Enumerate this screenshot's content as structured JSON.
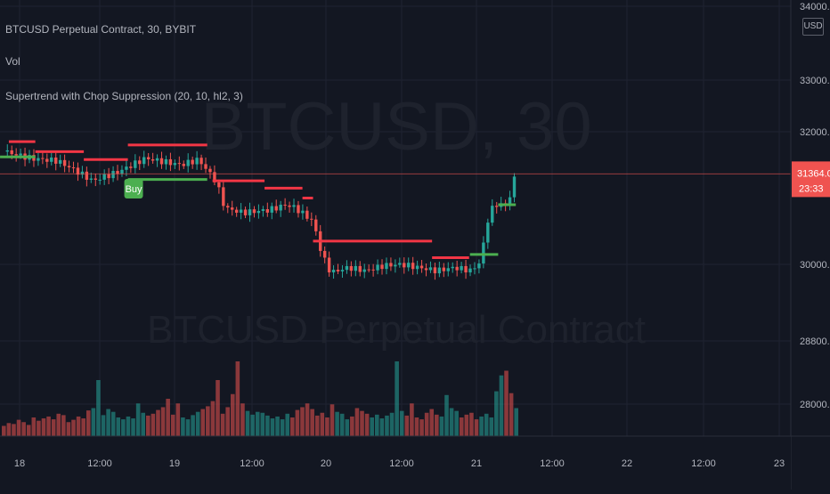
{
  "symbol_title": "BTCUSD Perpetual Contract, 30, BYBIT",
  "volume_label": "Vol",
  "indicator_label": "Supertrend with Chop Suppression (20, 10, hl2, 3)",
  "watermark": {
    "line1": "BTCUSD, 30",
    "line2": "BTCUSD Perpetual Contract"
  },
  "currency_button": "USD",
  "price_badge": {
    "price": "31364.0",
    "countdown": "23:33"
  },
  "buy_label": "Buy",
  "colors": {
    "background": "#131722",
    "up": "#26a69a",
    "down": "#ef5350",
    "supertrend_up": "#4caf50",
    "supertrend_down": "#f23645"
  },
  "chart_data": {
    "type": "candlestick",
    "title": "BTCUSD Perpetual Contract, 30, BYBIT",
    "y_axis": {
      "ticks": [
        "34000.0",
        "33000.0",
        "32000.0",
        "30000.0",
        "28800.0",
        "28000.0"
      ],
      "tick_values": [
        34000,
        33000,
        32000,
        30000,
        28800,
        28000
      ],
      "scale": "log"
    },
    "x_axis": {
      "ticks": [
        "18",
        "12:00",
        "19",
        "12:00",
        "20",
        "12:00",
        "21",
        "12:00",
        "22",
        "12:00",
        "23"
      ]
    },
    "last_price": 31364.0,
    "price_path": [
      {
        "t": 0,
        "p": 31700
      },
      {
        "t": 3,
        "p": 31600
      },
      {
        "t": 6,
        "p": 31560
      },
      {
        "t": 8,
        "p": 31420
      },
      {
        "t": 10,
        "p": 31260
      },
      {
        "t": 13,
        "p": 31400
      },
      {
        "t": 16,
        "p": 31600
      },
      {
        "t": 18,
        "p": 31550
      },
      {
        "t": 20,
        "p": 31500
      },
      {
        "t": 22,
        "p": 31580
      },
      {
        "t": 23,
        "p": 31420
      },
      {
        "t": 24,
        "p": 31250
      },
      {
        "t": 25,
        "p": 30850
      },
      {
        "t": 27,
        "p": 30780
      },
      {
        "t": 30,
        "p": 30820
      },
      {
        "t": 32,
        "p": 30900
      },
      {
        "t": 33,
        "p": 30850
      },
      {
        "t": 35,
        "p": 30650
      },
      {
        "t": 36,
        "p": 30150
      },
      {
        "t": 37,
        "p": 29870
      },
      {
        "t": 39,
        "p": 29950
      },
      {
        "t": 41,
        "p": 29900
      },
      {
        "t": 43,
        "p": 29980
      },
      {
        "t": 45,
        "p": 30000
      },
      {
        "t": 47,
        "p": 29950
      },
      {
        "t": 49,
        "p": 29900
      },
      {
        "t": 51,
        "p": 29950
      },
      {
        "t": 53,
        "p": 29900
      },
      {
        "t": 54,
        "p": 30050
      },
      {
        "t": 55,
        "p": 30800
      },
      {
        "t": 56,
        "p": 30920
      },
      {
        "t": 57,
        "p": 30880
      },
      {
        "t": 58,
        "p": 31364
      }
    ],
    "volume": [
      22,
      28,
      26,
      35,
      30,
      24,
      40,
      33,
      38,
      42,
      36,
      48,
      45,
      30,
      35,
      42,
      38,
      55,
      60,
      120,
      45,
      58,
      52,
      40,
      36,
      42,
      38,
      70,
      50,
      44,
      48,
      56,
      62,
      80,
      46,
      70,
      40,
      36,
      45,
      52,
      58,
      64,
      75,
      120,
      48,
      62,
      90,
      160,
      70,
      54,
      46,
      52,
      50,
      44,
      38,
      42,
      36,
      48,
      40,
      56,
      62,
      70,
      58,
      44,
      50,
      40,
      68,
      52,
      48,
      36,
      42,
      60,
      54,
      48,
      40,
      46,
      38,
      44,
      50,
      160,
      54,
      44,
      70,
      40,
      36,
      50,
      58,
      46,
      42,
      88,
      60,
      54,
      40,
      46,
      50,
      36,
      42,
      48,
      40,
      96,
      130,
      140,
      92,
      60
    ]
  }
}
